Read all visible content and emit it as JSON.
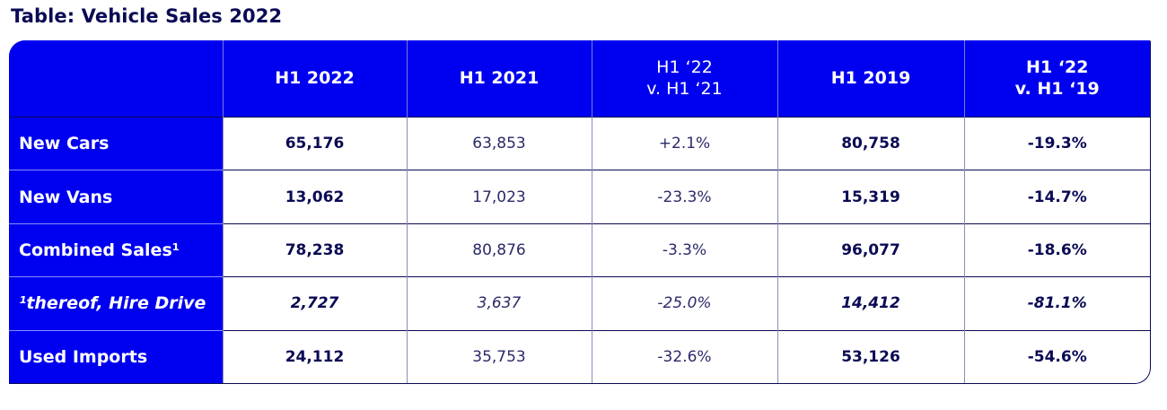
{
  "title": "Table: Vehicle Sales 2022",
  "table": {
    "headers": [
      [
        "",
        ""
      ],
      [
        "H1 2022",
        ""
      ],
      [
        "H1 2021",
        ""
      ],
      [
        "H1 ‘22",
        "v. H1 ‘21"
      ],
      [
        "H1 2019",
        ""
      ],
      [
        "H1 ‘22",
        "v. H1 ‘19"
      ]
    ],
    "rows": [
      {
        "label": "New Cars",
        "cells": [
          "65,176",
          "63,853",
          "+2.1%",
          "80,758",
          "-19.3%"
        ]
      },
      {
        "label": "New Vans",
        "cells": [
          "13,062",
          "17,023",
          "-23.3%",
          "15,319",
          "-14.7%"
        ]
      },
      {
        "label": "Combined Sales¹",
        "cells": [
          "78,238",
          "80,876",
          "-3.3%",
          "96,077",
          "-18.6%"
        ]
      },
      {
        "label": "¹thereof, Hire Drive",
        "cells": [
          "2,727",
          "3,637",
          "-25.0%",
          "14,412",
          "-81.1%"
        ]
      },
      {
        "label": "Used Imports",
        "cells": [
          "24,112",
          "35,753",
          "-32.6%",
          "53,126",
          "-54.6%"
        ]
      }
    ]
  },
  "colors": {
    "header_bg": "#0000f0",
    "title_text": "#0a0a55",
    "cell_text": "#0a0a55"
  }
}
